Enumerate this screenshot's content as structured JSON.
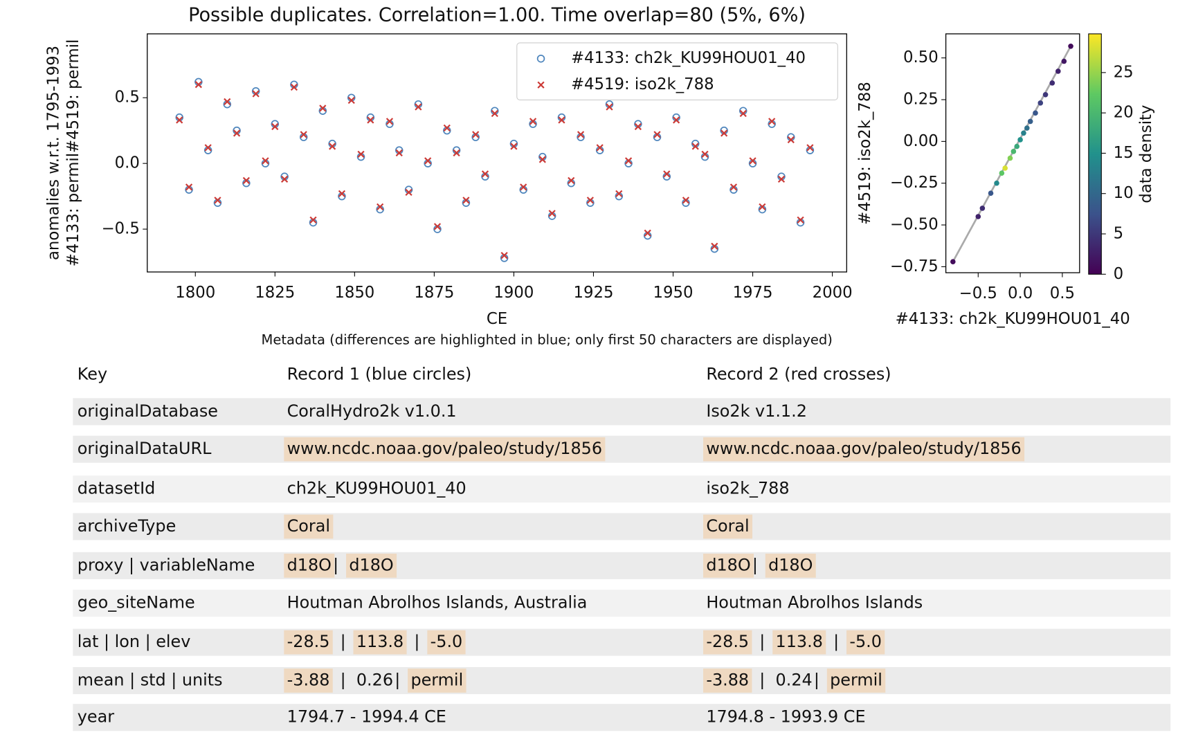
{
  "chart_data": [
    {
      "type": "scatter",
      "title": "Possible duplicates. Correlation=1.00. Time overlap=80 (5%, 6%)",
      "xlabel": "CE",
      "ylabel": [
        "anomalies w.r.t. 1795-1993",
        "#4133: permil#4519: permil"
      ],
      "x": [
        1795,
        1798,
        1801,
        1804,
        1807,
        1810,
        1813,
        1816,
        1819,
        1822,
        1825,
        1828,
        1831,
        1834,
        1837,
        1840,
        1843,
        1846,
        1849,
        1852,
        1855,
        1858,
        1861,
        1864,
        1867,
        1870,
        1873,
        1876,
        1879,
        1882,
        1885,
        1888,
        1891,
        1894,
        1897,
        1900,
        1903,
        1906,
        1909,
        1912,
        1915,
        1918,
        1921,
        1924,
        1927,
        1930,
        1933,
        1936,
        1939,
        1942,
        1945,
        1948,
        1951,
        1954,
        1957,
        1960,
        1963,
        1966,
        1969,
        1972,
        1975,
        1978,
        1981,
        1984,
        1987,
        1990,
        1993
      ],
      "series": [
        {
          "name": "#4133: ch2k_KU99HOU01_40",
          "color": "#4f86bd",
          "marker": "circle",
          "values": [
            0.35,
            -0.2,
            0.62,
            0.1,
            -0.3,
            0.45,
            0.25,
            -0.15,
            0.55,
            0.0,
            0.3,
            -0.1,
            0.6,
            0.2,
            -0.45,
            0.4,
            0.15,
            -0.25,
            0.5,
            0.05,
            0.35,
            -0.35,
            0.3,
            0.1,
            -0.2,
            0.45,
            0.0,
            -0.5,
            0.25,
            0.1,
            -0.3,
            0.2,
            -0.1,
            0.4,
            -0.72,
            0.15,
            -0.2,
            0.3,
            0.05,
            -0.4,
            0.35,
            -0.15,
            0.2,
            -0.3,
            0.1,
            0.45,
            -0.25,
            0.0,
            0.3,
            -0.55,
            0.2,
            -0.1,
            0.35,
            -0.3,
            0.15,
            0.05,
            -0.65,
            0.25,
            -0.2,
            0.4,
            0.0,
            -0.35,
            0.3,
            -0.1,
            0.2,
            -0.45,
            0.1
          ]
        },
        {
          "name": "#4519: iso2k_788",
          "color": "#cc3a36",
          "marker": "x",
          "values": [
            0.33,
            -0.18,
            0.6,
            0.12,
            -0.28,
            0.47,
            0.23,
            -0.13,
            0.53,
            0.02,
            0.28,
            -0.12,
            0.58,
            0.22,
            -0.43,
            0.42,
            0.13,
            -0.23,
            0.48,
            0.07,
            0.33,
            -0.33,
            0.32,
            0.08,
            -0.22,
            0.43,
            0.02,
            -0.48,
            0.27,
            0.08,
            -0.28,
            0.22,
            -0.08,
            0.38,
            -0.7,
            0.13,
            -0.18,
            0.32,
            0.03,
            -0.38,
            0.33,
            -0.13,
            0.22,
            -0.28,
            0.12,
            0.43,
            -0.23,
            0.02,
            0.28,
            -0.53,
            0.22,
            -0.08,
            0.33,
            -0.28,
            0.13,
            0.07,
            -0.63,
            0.23,
            -0.18,
            0.38,
            0.02,
            -0.33,
            0.32,
            -0.12,
            0.18,
            -0.43,
            0.12
          ]
        }
      ],
      "xlim": [
        1784.9,
        2004.5
      ],
      "xticks": [
        1800,
        1825,
        1850,
        1875,
        1900,
        1925,
        1950,
        1975,
        2000
      ],
      "ylim": [
        -0.826,
        0.986
      ],
      "yticks": [
        {
          "value": -0.5,
          "label": "−0.5"
        },
        {
          "value": 0,
          "label": "0.0"
        },
        {
          "value": 0.5,
          "label": "0.5"
        }
      ],
      "legend": "upper right",
      "grid": false
    },
    {
      "type": "density-scatter",
      "xlabel": "#4133: ch2k_KU99HOU01_40",
      "ylabel": "#4519: iso2k_788",
      "x": [
        -0.8,
        -0.5,
        -0.45,
        -0.35,
        -0.28,
        -0.22,
        -0.18,
        -0.12,
        -0.08,
        -0.04,
        0.0,
        0.04,
        0.08,
        0.12,
        0.18,
        0.24,
        0.3,
        0.38,
        0.45,
        0.52,
        0.6
      ],
      "values": [
        -0.72,
        -0.45,
        -0.4,
        -0.31,
        -0.25,
        -0.19,
        -0.16,
        -0.1,
        -0.06,
        -0.03,
        0.01,
        0.05,
        0.08,
        0.12,
        0.17,
        0.23,
        0.28,
        0.35,
        0.42,
        0.48,
        0.57
      ],
      "density": [
        1,
        3,
        4,
        8,
        14,
        22,
        28,
        24,
        20,
        18,
        15,
        13,
        11,
        9,
        8,
        6,
        5,
        4,
        3,
        2,
        1
      ],
      "colormap": [
        "#440154",
        "#3b528b",
        "#21918c",
        "#5ec962",
        "#fde725"
      ],
      "clim": [
        0,
        29.8
      ],
      "cticks": [
        0,
        5,
        10,
        15,
        20,
        25
      ],
      "clabel": "data density",
      "xlim": [
        -0.884,
        0.705
      ],
      "xticks": [
        {
          "value": -0.5,
          "label": "−0.5"
        },
        {
          "value": 0,
          "label": "0.0"
        },
        {
          "value": 0.5,
          "label": "0.5"
        }
      ],
      "ylim": [
        -0.786,
        0.644
      ],
      "yticks": [
        {
          "value": -0.75,
          "label": "−0.75"
        },
        {
          "value": -0.5,
          "label": "−0.50"
        },
        {
          "value": -0.25,
          "label": "−0.25"
        },
        {
          "value": 0,
          "label": "0.00"
        },
        0.25,
        {
          "value": 0.5,
          "label": "0.50"
        }
      ]
    }
  ],
  "table": {
    "caption": "Metadata (differences are highlighted in blue; only first 50 characters are displayed)",
    "header": [
      "Key",
      "Record 1 (blue circles)",
      "Record 2 (red crosses)"
    ],
    "rows": [
      {
        "key": "originalDatabase",
        "cells": [
          [
            {
              "text": "CoralHydro2k v1.0.1",
              "highlight": false
            }
          ],
          [
            {
              "text": "Iso2k v1.1.2",
              "highlight": false
            }
          ]
        ]
      },
      {
        "key": "originalDataURL",
        "cells": [
          [
            {
              "text": "www.ncdc.noaa.gov/paleo/study/1856",
              "highlight": true
            }
          ],
          [
            {
              "text": "www.ncdc.noaa.gov/paleo/study/1856",
              "highlight": true
            }
          ]
        ]
      },
      {
        "key": "datasetId",
        "cells": [
          [
            {
              "text": "ch2k_KU99HOU01_40",
              "highlight": false
            }
          ],
          [
            {
              "text": "iso2k_788",
              "highlight": false
            }
          ]
        ]
      },
      {
        "key": "archiveType",
        "cells": [
          [
            {
              "text": "Coral",
              "highlight": true
            }
          ],
          [
            {
              "text": "Coral",
              "highlight": true
            }
          ]
        ]
      },
      {
        "key": "proxy | variableName",
        "cells": [
          [
            {
              "text": "d18O",
              "highlight": true
            },
            {
              "text": "|",
              "highlight": false
            },
            {
              "text": "d18O",
              "highlight": true
            }
          ],
          [
            {
              "text": "d18O",
              "highlight": true
            },
            {
              "text": "|",
              "highlight": false
            },
            {
              "text": "d18O",
              "highlight": true
            }
          ]
        ]
      },
      {
        "key": "geo_siteName",
        "cells": [
          [
            {
              "text": "Houtman Abrolhos Islands, Australia",
              "highlight": false
            }
          ],
          [
            {
              "text": "Houtman Abrolhos Islands",
              "highlight": false
            }
          ]
        ]
      },
      {
        "key": "lat | lon | elev",
        "cells": [
          [
            {
              "text": "-28.5",
              "highlight": true
            },
            {
              "text": "|",
              "highlight": false
            },
            {
              "text": "113.8",
              "highlight": true
            },
            {
              "text": "|",
              "highlight": false
            },
            {
              "text": "-5.0",
              "highlight": true
            }
          ],
          [
            {
              "text": "-28.5",
              "highlight": true
            },
            {
              "text": "|",
              "highlight": false
            },
            {
              "text": "113.8",
              "highlight": true
            },
            {
              "text": "|",
              "highlight": false
            },
            {
              "text": "-5.0",
              "highlight": true
            }
          ]
        ]
      },
      {
        "key": "mean | std | units",
        "cells": [
          [
            {
              "text": "-3.88",
              "highlight": true
            },
            {
              "text": "|",
              "highlight": false
            },
            {
              "text": "0.26",
              "highlight": false
            },
            {
              "text": "|",
              "highlight": false
            },
            {
              "text": "permil",
              "highlight": true
            }
          ],
          [
            {
              "text": "-3.88",
              "highlight": true
            },
            {
              "text": "|",
              "highlight": false
            },
            {
              "text": "0.24",
              "highlight": false
            },
            {
              "text": "|",
              "highlight": false
            },
            {
              "text": "permil",
              "highlight": true
            }
          ]
        ]
      },
      {
        "key": "year",
        "cells": [
          [
            {
              "text": "1794.7 - 1994.4 CE",
              "highlight": false
            }
          ],
          [
            {
              "text": "1794.8 - 1993.9 CE",
              "highlight": false
            }
          ]
        ]
      }
    ]
  }
}
